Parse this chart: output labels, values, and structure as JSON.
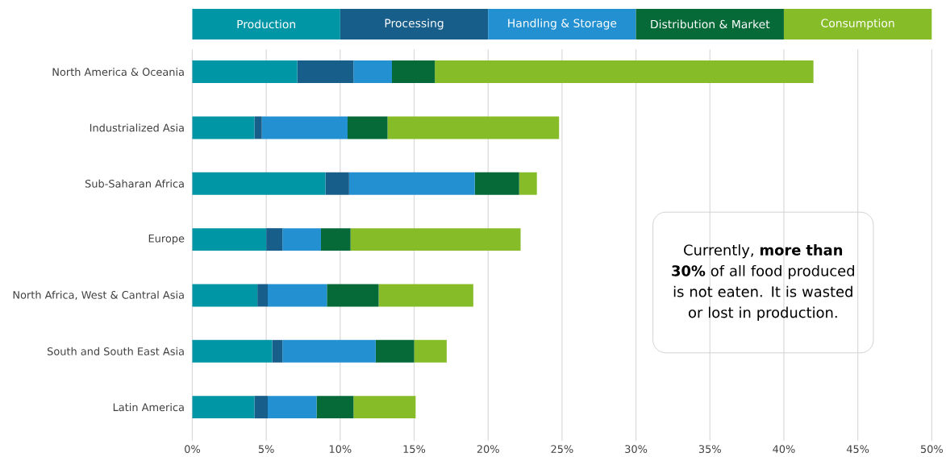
{
  "chart_data": {
    "type": "bar",
    "orientation": "horizontal",
    "stacked": true,
    "categories": [
      "North America & Oceania",
      "Industrialized Asia",
      "Sub-Saharan Africa",
      "Europe",
      "North Africa, West & Cantral Asia",
      "South and South East Asia",
      "Latin America"
    ],
    "series": [
      {
        "name": "Production",
        "color": "#0096a6",
        "values": [
          7.1,
          4.2,
          9.0,
          5.0,
          4.4,
          5.4,
          4.2
        ]
      },
      {
        "name": "Processing",
        "color": "#175e8a",
        "values": [
          3.8,
          0.5,
          1.6,
          1.1,
          0.7,
          0.7,
          0.9
        ]
      },
      {
        "name": "Handling & Storage",
        "color": "#2390d2",
        "values": [
          2.6,
          5.8,
          8.5,
          2.6,
          4.0,
          6.3,
          3.3
        ]
      },
      {
        "name": "Distribution & Market",
        "color": "#056938",
        "values": [
          2.9,
          2.7,
          3.0,
          2.0,
          3.5,
          2.6,
          2.5
        ]
      },
      {
        "name": "Consumption",
        "color": "#86bc27",
        "values": [
          25.6,
          11.6,
          1.2,
          11.5,
          6.4,
          2.2,
          4.2
        ]
      }
    ],
    "xlim": [
      0,
      50
    ],
    "xticks": [
      {
        "value": 0,
        "label": "0%"
      },
      {
        "value": 5,
        "label": "5%"
      },
      {
        "value": 10,
        "label": "10%"
      },
      {
        "value": 15,
        "label": "15%"
      },
      {
        "value": 20,
        "label": "20%"
      },
      {
        "value": 25,
        "label": "25%"
      },
      {
        "value": 30,
        "label": "30%"
      },
      {
        "value": 35,
        "label": "35%"
      },
      {
        "value": 40,
        "label": "40%"
      },
      {
        "value": 45,
        "label": "45%"
      },
      {
        "value": 50,
        "label": "50%"
      }
    ],
    "grid": "x",
    "legend": "top",
    "annotations": [
      "Currently, **more than 30%** of all food produced is not eaten. It is wasted or lost in production."
    ]
  }
}
